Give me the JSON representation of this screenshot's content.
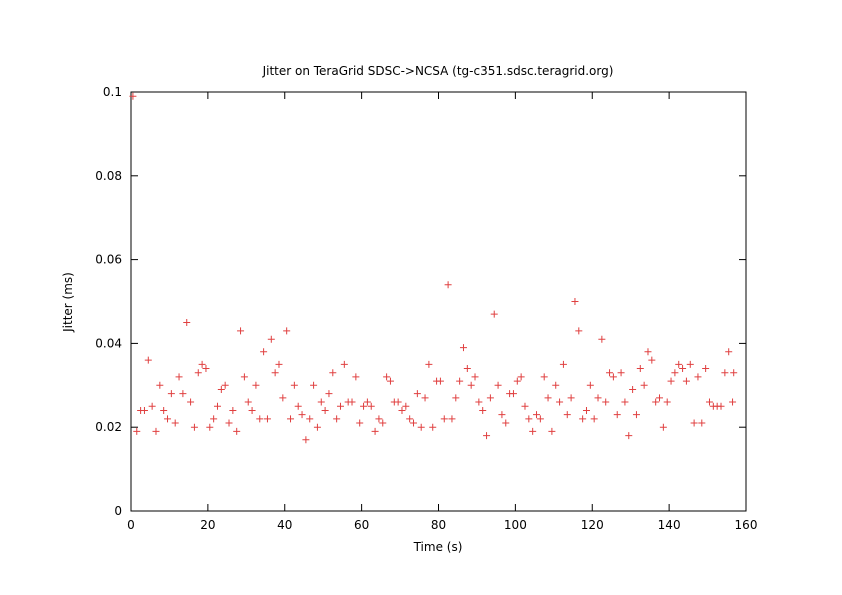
{
  "chart_data": {
    "type": "scatter",
    "title": "Jitter on TeraGrid SDSC->NCSA (tg-c351.sdsc.teragrid.org)",
    "xlabel": "Time (s)",
    "ylabel": "Jitter (ms)",
    "xlim": [
      0,
      160
    ],
    "ylim": [
      0,
      0.1
    ],
    "xticks": [
      0,
      20,
      40,
      60,
      80,
      100,
      120,
      140,
      160
    ],
    "yticks": [
      0,
      0.02,
      0.04,
      0.06,
      0.08,
      0.1
    ],
    "xtick_labels": [
      "0",
      "20",
      "40",
      "60",
      "80",
      "100",
      "120",
      "140",
      "160"
    ],
    "ytick_labels": [
      "0",
      "0.02",
      "0.04",
      "0.06",
      "0.08",
      "0.1"
    ],
    "grid": false,
    "legend": "none",
    "marker": "plus",
    "color": "#e04040",
    "series": [
      {
        "points": [
          [
            0.5,
            0.099
          ],
          [
            1.5,
            0.019
          ],
          [
            2.5,
            0.024
          ],
          [
            3.5,
            0.024
          ],
          [
            4.5,
            0.036
          ],
          [
            5.5,
            0.025
          ],
          [
            6.5,
            0.019
          ],
          [
            7.5,
            0.03
          ],
          [
            8.5,
            0.024
          ],
          [
            9.5,
            0.022
          ],
          [
            10.5,
            0.028
          ],
          [
            11.5,
            0.021
          ],
          [
            12.5,
            0.032
          ],
          [
            13.5,
            0.028
          ],
          [
            14.5,
            0.045
          ],
          [
            15.5,
            0.026
          ],
          [
            16.5,
            0.02
          ],
          [
            17.5,
            0.033
          ],
          [
            18.5,
            0.035
          ],
          [
            19.5,
            0.034
          ],
          [
            20.5,
            0.02
          ],
          [
            21.5,
            0.022
          ],
          [
            22.5,
            0.025
          ],
          [
            23.5,
            0.029
          ],
          [
            24.5,
            0.03
          ],
          [
            25.5,
            0.021
          ],
          [
            26.5,
            0.024
          ],
          [
            27.5,
            0.019
          ],
          [
            28.5,
            0.043
          ],
          [
            29.5,
            0.032
          ],
          [
            30.5,
            0.026
          ],
          [
            31.5,
            0.024
          ],
          [
            32.5,
            0.03
          ],
          [
            33.5,
            0.022
          ],
          [
            34.5,
            0.038
          ],
          [
            35.5,
            0.022
          ],
          [
            36.5,
            0.041
          ],
          [
            37.5,
            0.033
          ],
          [
            38.5,
            0.035
          ],
          [
            39.5,
            0.027
          ],
          [
            40.5,
            0.043
          ],
          [
            41.5,
            0.022
          ],
          [
            42.5,
            0.03
          ],
          [
            43.5,
            0.025
          ],
          [
            44.5,
            0.023
          ],
          [
            45.5,
            0.017
          ],
          [
            46.5,
            0.022
          ],
          [
            47.5,
            0.03
          ],
          [
            48.5,
            0.02
          ],
          [
            49.5,
            0.026
          ],
          [
            50.5,
            0.024
          ],
          [
            51.5,
            0.028
          ],
          [
            52.5,
            0.033
          ],
          [
            53.5,
            0.022
          ],
          [
            54.5,
            0.025
          ],
          [
            55.5,
            0.035
          ],
          [
            56.5,
            0.026
          ],
          [
            57.5,
            0.026
          ],
          [
            58.5,
            0.032
          ],
          [
            59.5,
            0.021
          ],
          [
            60.5,
            0.025
          ],
          [
            61.5,
            0.026
          ],
          [
            62.5,
            0.025
          ],
          [
            63.5,
            0.019
          ],
          [
            64.5,
            0.022
          ],
          [
            65.5,
            0.021
          ],
          [
            66.5,
            0.032
          ],
          [
            67.5,
            0.031
          ],
          [
            68.5,
            0.026
          ],
          [
            69.5,
            0.026
          ],
          [
            70.5,
            0.024
          ],
          [
            71.5,
            0.025
          ],
          [
            72.5,
            0.022
          ],
          [
            73.5,
            0.021
          ],
          [
            74.5,
            0.028
          ],
          [
            75.5,
            0.02
          ],
          [
            76.5,
            0.027
          ],
          [
            77.5,
            0.035
          ],
          [
            78.5,
            0.02
          ],
          [
            79.5,
            0.031
          ],
          [
            80.5,
            0.031
          ],
          [
            81.5,
            0.022
          ],
          [
            82.5,
            0.054
          ],
          [
            83.5,
            0.022
          ],
          [
            84.5,
            0.027
          ],
          [
            85.5,
            0.031
          ],
          [
            86.5,
            0.039
          ],
          [
            87.5,
            0.034
          ],
          [
            88.5,
            0.03
          ],
          [
            89.5,
            0.032
          ],
          [
            90.5,
            0.026
          ],
          [
            91.5,
            0.024
          ],
          [
            92.5,
            0.018
          ],
          [
            93.5,
            0.027
          ],
          [
            94.5,
            0.047
          ],
          [
            95.5,
            0.03
          ],
          [
            96.5,
            0.023
          ],
          [
            97.5,
            0.021
          ],
          [
            98.5,
            0.028
          ],
          [
            99.5,
            0.028
          ],
          [
            100.5,
            0.031
          ],
          [
            101.5,
            0.032
          ],
          [
            102.5,
            0.025
          ],
          [
            103.5,
            0.022
          ],
          [
            104.5,
            0.019
          ],
          [
            105.5,
            0.023
          ],
          [
            106.5,
            0.022
          ],
          [
            107.5,
            0.032
          ],
          [
            108.5,
            0.027
          ],
          [
            109.5,
            0.019
          ],
          [
            110.5,
            0.03
          ],
          [
            111.5,
            0.026
          ],
          [
            112.5,
            0.035
          ],
          [
            113.5,
            0.023
          ],
          [
            114.5,
            0.027
          ],
          [
            115.5,
            0.05
          ],
          [
            116.5,
            0.043
          ],
          [
            117.5,
            0.022
          ],
          [
            118.5,
            0.024
          ],
          [
            119.5,
            0.03
          ],
          [
            120.5,
            0.022
          ],
          [
            121.5,
            0.027
          ],
          [
            122.5,
            0.041
          ],
          [
            123.5,
            0.026
          ],
          [
            124.5,
            0.033
          ],
          [
            125.5,
            0.032
          ],
          [
            126.5,
            0.023
          ],
          [
            127.5,
            0.033
          ],
          [
            128.5,
            0.026
          ],
          [
            129.5,
            0.018
          ],
          [
            130.5,
            0.029
          ],
          [
            131.5,
            0.023
          ],
          [
            132.5,
            0.034
          ],
          [
            133.5,
            0.03
          ],
          [
            134.5,
            0.038
          ],
          [
            135.5,
            0.036
          ],
          [
            136.5,
            0.026
          ],
          [
            137.5,
            0.027
          ],
          [
            138.5,
            0.02
          ],
          [
            139.5,
            0.026
          ],
          [
            140.5,
            0.031
          ],
          [
            141.5,
            0.033
          ],
          [
            142.5,
            0.035
          ],
          [
            143.5,
            0.034
          ],
          [
            144.5,
            0.031
          ],
          [
            145.5,
            0.035
          ],
          [
            146.5,
            0.021
          ],
          [
            147.5,
            0.032
          ],
          [
            148.5,
            0.021
          ],
          [
            149.5,
            0.034
          ],
          [
            150.5,
            0.026
          ],
          [
            151.5,
            0.025
          ],
          [
            152.5,
            0.025
          ],
          [
            153.5,
            0.025
          ],
          [
            154.5,
            0.033
          ],
          [
            155.5,
            0.038
          ],
          [
            156.5,
            0.026
          ],
          [
            156.8,
            0.033
          ]
        ]
      }
    ]
  }
}
